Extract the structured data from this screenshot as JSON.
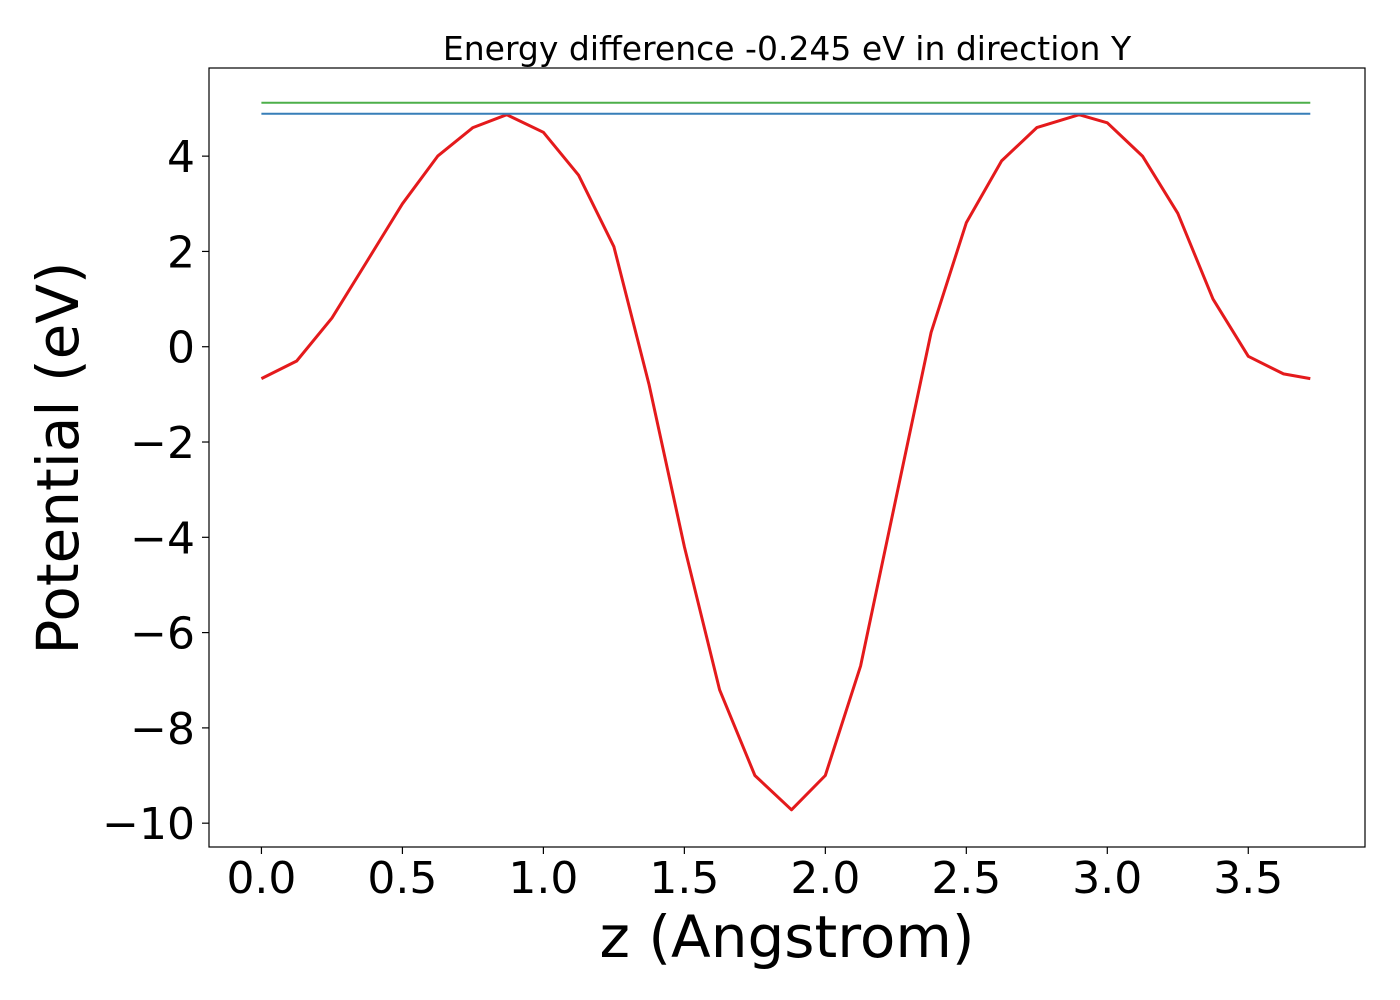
{
  "chart_data": {
    "type": "line",
    "title": "Energy difference -0.245 eV in direction Y",
    "xlabel": "z (Angstrom)",
    "ylabel": "Potential (eV)",
    "xlim": [
      -0.186,
      3.914
    ],
    "ylim": [
      -10.5,
      5.85
    ],
    "xticks": [
      0.0,
      0.5,
      1.0,
      1.5,
      2.0,
      2.5,
      3.0,
      3.5
    ],
    "xtick_labels": [
      "0.0",
      "0.5",
      "1.0",
      "1.5",
      "2.0",
      "2.5",
      "3.0",
      "3.5"
    ],
    "yticks": [
      4,
      2,
      0,
      -2,
      -4,
      -6,
      -8,
      -10
    ],
    "ytick_labels": [
      "4",
      "2",
      "0",
      "−2",
      "−4",
      "−6",
      "−8",
      "−10"
    ],
    "grid": false,
    "colors": {
      "potential": "#e41a1c",
      "level_blue": "#377eb8",
      "level_green": "#4daf4a"
    },
    "series": [
      {
        "x": [
          0.0,
          0.125,
          0.25,
          0.375,
          0.5,
          0.625,
          0.75,
          0.87,
          1.0,
          1.125,
          1.25,
          1.375,
          1.5,
          1.625,
          1.75,
          1.88,
          2.0,
          2.125,
          2.25,
          2.375,
          2.5,
          2.625,
          2.75,
          2.9,
          3.0,
          3.125,
          3.25,
          3.375,
          3.5,
          3.625,
          3.72
        ],
        "y": [
          -0.67,
          -0.3,
          0.6,
          1.8,
          3.0,
          4.0,
          4.6,
          4.87,
          4.5,
          3.6,
          2.1,
          -0.8,
          -4.2,
          -7.2,
          -9.0,
          -9.72,
          -9.0,
          -6.7,
          -3.2,
          0.3,
          2.6,
          3.9,
          4.6,
          4.87,
          4.7,
          4.0,
          2.8,
          1.0,
          -0.2,
          -0.57,
          -0.67
        ]
      },
      {
        "x": [
          0.0,
          3.72
        ],
        "y": [
          4.89,
          4.89
        ]
      },
      {
        "x": [
          0.0,
          3.72
        ],
        "y": [
          5.12,
          5.12
        ]
      }
    ]
  }
}
